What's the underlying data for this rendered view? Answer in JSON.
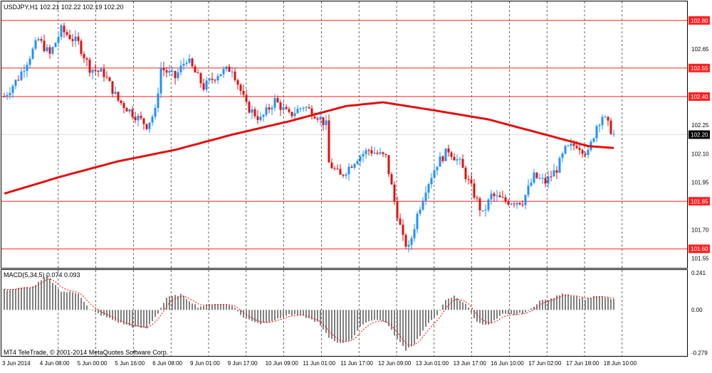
{
  "colors": {
    "background": "#ffffff",
    "bull": "#1e90ff",
    "bear": "#dd1111",
    "ma": "#e01010",
    "level": "#ff2020",
    "grid": "#000000",
    "macd_hist": "#808080",
    "macd_signal": "#ff0000",
    "text": "#000000"
  },
  "chart_data": {
    "type": "candlestick",
    "symbol_header": "USDJPY,H1  102.21 102.22 102.19 102.20",
    "ylim": [
      101.5,
      102.9
    ],
    "price_ticks": [
      "102.80",
      "102.65",
      "102.55",
      "102.40",
      "102.25",
      "102.20",
      "102.10",
      "101.95",
      "101.85",
      "101.70",
      "101.60",
      "101.55"
    ],
    "x_ticks": [
      "3 Jun 2014",
      "4 Jun 08:00",
      "5 Jun 00:00",
      "5 Jun 16:00",
      "6 Jun 08:00",
      "9 Jun 01:00",
      "9 Jun 17:00",
      "10 Jun 09:00",
      "11 Jun 01:00",
      "11 Jun 17:00",
      "12 Jun 09:00",
      "13 Jun 01:00",
      "13 Jun 17:00",
      "16 Jun 10:00",
      "17 Jun 02:00",
      "17 Jun 18:00",
      "18 Jun 10:00"
    ],
    "levels": [
      {
        "value": 102.8,
        "label": "102.80"
      },
      {
        "value": 102.55,
        "label": "102.55"
      },
      {
        "value": 102.4,
        "label": "102.40"
      },
      {
        "value": 101.85,
        "label": "101.85"
      },
      {
        "value": 101.6,
        "label": "101.60"
      }
    ],
    "current_price": {
      "value": 102.2,
      "label": "102.20"
    },
    "grid": true,
    "close_anchors": [
      [
        0,
        102.4
      ],
      [
        5,
        102.5
      ],
      [
        12,
        102.7
      ],
      [
        16,
        102.62
      ],
      [
        20,
        102.75
      ],
      [
        26,
        102.68
      ],
      [
        30,
        102.55
      ],
      [
        35,
        102.52
      ],
      [
        40,
        102.38
      ],
      [
        46,
        102.3
      ],
      [
        50,
        102.25
      ],
      [
        53,
        102.32
      ],
      [
        55,
        102.55
      ],
      [
        60,
        102.5
      ],
      [
        64,
        102.6
      ],
      [
        70,
        102.45
      ],
      [
        75,
        102.52
      ],
      [
        80,
        102.55
      ],
      [
        85,
        102.35
      ],
      [
        90,
        102.28
      ],
      [
        95,
        102.38
      ],
      [
        100,
        102.3
      ],
      [
        105,
        102.35
      ],
      [
        110,
        102.3
      ],
      [
        113,
        102.25
      ],
      [
        114,
        102.05
      ],
      [
        118,
        101.98
      ],
      [
        124,
        102.08
      ],
      [
        128,
        102.12
      ],
      [
        134,
        102.08
      ],
      [
        137,
        101.85
      ],
      [
        140,
        101.65
      ],
      [
        142,
        101.6
      ],
      [
        145,
        101.78
      ],
      [
        148,
        101.92
      ],
      [
        152,
        102.05
      ],
      [
        156,
        102.12
      ],
      [
        160,
        102.05
      ],
      [
        164,
        101.92
      ],
      [
        168,
        101.78
      ],
      [
        171,
        101.88
      ],
      [
        176,
        101.85
      ],
      [
        182,
        101.85
      ],
      [
        186,
        101.98
      ],
      [
        190,
        101.95
      ],
      [
        194,
        102.02
      ],
      [
        197,
        102.12
      ],
      [
        201,
        102.15
      ],
      [
        205,
        102.1
      ],
      [
        208,
        102.25
      ],
      [
        210,
        102.3
      ],
      [
        212,
        102.25
      ],
      [
        214,
        102.2
      ]
    ],
    "ma": {
      "name": "",
      "points": [
        [
          0,
          101.89
        ],
        [
          20,
          101.98
        ],
        [
          40,
          102.06
        ],
        [
          60,
          102.12
        ],
        [
          80,
          102.2
        ],
        [
          100,
          102.27
        ],
        [
          120,
          102.35
        ],
        [
          133,
          102.37
        ],
        [
          150,
          102.33
        ],
        [
          170,
          102.28
        ],
        [
          190,
          102.2
        ],
        [
          205,
          102.14
        ],
        [
          214,
          102.13
        ]
      ]
    },
    "macd": {
      "label": "MACD(5,34,5) 0.074 0.093",
      "ylim": [
        -0.3,
        0.26
      ],
      "ticks": [
        "0.241",
        "0.00",
        "-0.279"
      ],
      "anchors": [
        [
          0,
          0.13
        ],
        [
          10,
          0.15
        ],
        [
          15,
          0.22
        ],
        [
          20,
          0.12
        ],
        [
          26,
          0.11
        ],
        [
          30,
          0.0
        ],
        [
          35,
          -0.04
        ],
        [
          40,
          -0.08
        ],
        [
          45,
          -0.11
        ],
        [
          50,
          -0.12
        ],
        [
          54,
          -0.02
        ],
        [
          57,
          0.08
        ],
        [
          62,
          0.1
        ],
        [
          68,
          0.02
        ],
        [
          74,
          0.04
        ],
        [
          80,
          0.03
        ],
        [
          84,
          -0.05
        ],
        [
          90,
          -0.09
        ],
        [
          96,
          -0.06
        ],
        [
          100,
          -0.03
        ],
        [
          105,
          -0.04
        ],
        [
          110,
          -0.08
        ],
        [
          114,
          -0.18
        ],
        [
          118,
          -0.22
        ],
        [
          122,
          -0.19
        ],
        [
          126,
          -0.09
        ],
        [
          130,
          -0.06
        ],
        [
          134,
          -0.08
        ],
        [
          138,
          -0.19
        ],
        [
          141,
          -0.26
        ],
        [
          144,
          -0.22
        ],
        [
          148,
          -0.11
        ],
        [
          152,
          -0.03
        ],
        [
          155,
          0.06
        ],
        [
          158,
          0.09
        ],
        [
          162,
          0.04
        ],
        [
          166,
          -0.08
        ],
        [
          170,
          -0.1
        ],
        [
          175,
          -0.03
        ],
        [
          180,
          -0.03
        ],
        [
          184,
          -0.01
        ],
        [
          188,
          0.06
        ],
        [
          192,
          0.07
        ],
        [
          196,
          0.11
        ],
        [
          200,
          0.09
        ],
        [
          204,
          0.07
        ],
        [
          208,
          0.09
        ],
        [
          211,
          0.08
        ],
        [
          214,
          0.07
        ]
      ]
    },
    "footer": "MT4 TeleTrade, © 2001-2014 MetaQuotes Software Corp."
  }
}
